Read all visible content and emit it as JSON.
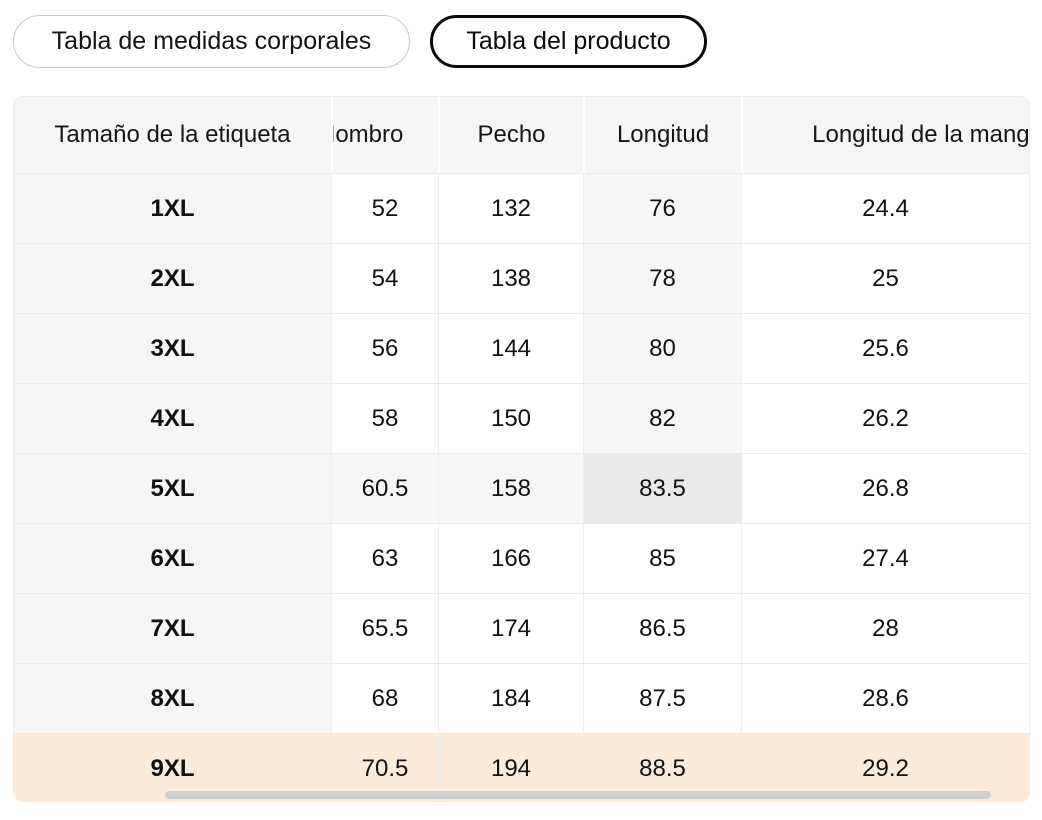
{
  "tabs": [
    {
      "label": "Tabla de medidas corporales",
      "selected": false
    },
    {
      "label": "Tabla del producto",
      "selected": true
    }
  ],
  "size_table": {
    "columns": [
      "Tamaño de la etiqueta",
      "Hombro",
      "Pecho",
      "Longitud",
      "Longitud de la manga"
    ],
    "rows": [
      {
        "label": "1XL",
        "values": [
          "52",
          "132",
          "76",
          "24.4"
        ]
      },
      {
        "label": "2XL",
        "values": [
          "54",
          "138",
          "78",
          "25"
        ]
      },
      {
        "label": "3XL",
        "values": [
          "56",
          "144",
          "80",
          "25.6"
        ]
      },
      {
        "label": "4XL",
        "values": [
          "58",
          "150",
          "82",
          "26.2"
        ]
      },
      {
        "label": "5XL",
        "values": [
          "60.5",
          "158",
          "83.5",
          "26.8"
        ]
      },
      {
        "label": "6XL",
        "values": [
          "63",
          "166",
          "85",
          "27.4"
        ]
      },
      {
        "label": "7XL",
        "values": [
          "65.5",
          "174",
          "86.5",
          "28"
        ]
      },
      {
        "label": "8XL",
        "values": [
          "68",
          "184",
          "87.5",
          "28.6"
        ]
      },
      {
        "label": "9XL",
        "values": [
          "70.5",
          "194",
          "88.5",
          "29.2"
        ]
      }
    ],
    "hovered_cell": {
      "row": "5XL",
      "column": "Longitud",
      "value": "83.5"
    },
    "selected_row": "9XL"
  },
  "colors": {
    "selected_row_bg": "#fcebd9",
    "hover_tint_bg": "#f5f6f7",
    "hovered_cell_bg": "#e9e9ea",
    "header_bg": "#f5f5f6",
    "row_border": "#ebebeb",
    "scrollbar_thumb": "#d0d0d0",
    "tab_selected_border": "#0a0a0a",
    "tab_border": "#c9c9c9"
  }
}
